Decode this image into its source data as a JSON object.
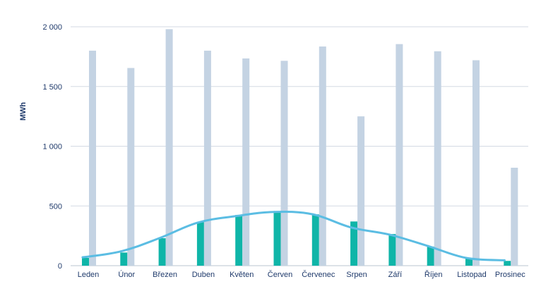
{
  "chart_data": {
    "type": "bar",
    "title": "",
    "xlabel": "",
    "ylabel": "MWh",
    "ylim": [
      0,
      2000
    ],
    "yticks": [
      {
        "value": 0,
        "label": "0"
      },
      {
        "value": 500,
        "label": "500"
      },
      {
        "value": 1000,
        "label": "1 000"
      },
      {
        "value": 1500,
        "label": "1 500"
      },
      {
        "value": 2000,
        "label": "2 000"
      }
    ],
    "grid": true,
    "legend": "none",
    "categories": [
      "Leden",
      "Únor",
      "Březen",
      "Duben",
      "Květen",
      "Červen",
      "Červenec",
      "Srpen",
      "Září",
      "Říjen",
      "Listopad",
      "Prosinec"
    ],
    "series": [
      {
        "type": "bar",
        "color": "#0fb5a8",
        "values": [
          65,
          110,
          230,
          365,
          425,
          455,
          430,
          370,
          265,
          160,
          65,
          40
        ]
      },
      {
        "type": "bar",
        "color": "#c4d3e3",
        "values": [
          1800,
          1655,
          1980,
          1800,
          1735,
          1715,
          1835,
          1250,
          1855,
          1795,
          1720,
          820
        ]
      },
      {
        "type": "line",
        "color": "#5bbde3",
        "values": [
          70,
          120,
          230,
          360,
          415,
          450,
          430,
          320,
          260,
          165,
          65,
          45
        ]
      }
    ]
  }
}
